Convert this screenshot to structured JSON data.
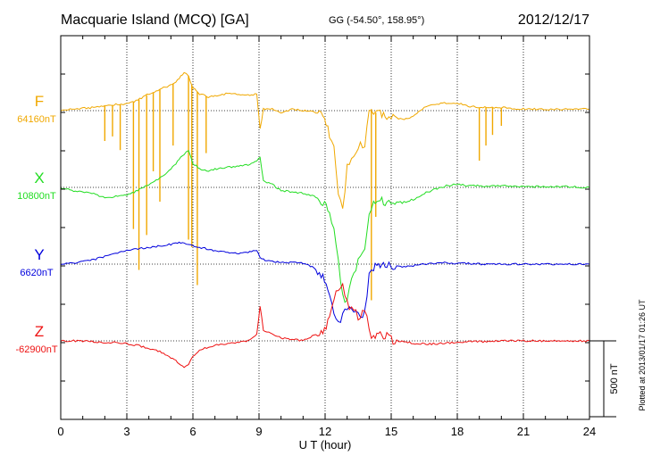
{
  "header": {
    "title": "Macquarie Island (MCQ)  [GA]",
    "coords": "GG (-54.50°, 158.95°)",
    "date": "2012/12/17"
  },
  "footer": {
    "plotted": "Plotted at 2013/01/17 01:26 UT"
  },
  "chart_data": {
    "type": "line",
    "title": "Macquarie Island (MCQ)  [GA]",
    "xlabel": "U T (hour)",
    "ylabel": "",
    "xlim": [
      0,
      24
    ],
    "xticks": [
      0,
      3,
      6,
      9,
      12,
      15,
      18,
      21,
      24
    ],
    "scale_bar": {
      "label": "500 nT",
      "value": 500
    },
    "grid": true,
    "series": [
      {
        "name": "F",
        "baseline_label": "64160nT",
        "color": "#f0a800",
        "baseline_nT": 64160,
        "x": [
          0,
          0.5,
          1,
          1.5,
          2,
          2.5,
          3,
          3.5,
          4,
          4.5,
          5,
          5.3,
          5.6,
          5.8,
          6.0,
          6.3,
          6.7,
          7.0,
          7.5,
          8.0,
          8.5,
          8.9,
          9.05,
          9.2,
          9.6,
          10.0,
          10.5,
          11.0,
          11.5,
          11.9,
          12.2,
          12.4,
          12.6,
          12.8,
          13.0,
          13.2,
          13.4,
          13.6,
          13.8,
          14.0,
          14.2,
          14.5,
          14.8,
          15.0,
          15.5,
          16.0,
          16.5,
          17.0,
          17.5,
          18.0,
          18.5,
          19.0,
          20.0,
          21.0,
          22.0,
          23.0,
          24.0
        ],
        "y": [
          0,
          10,
          15,
          20,
          30,
          40,
          45,
          70,
          110,
          140,
          170,
          200,
          250,
          230,
          150,
          110,
          90,
          100,
          110,
          110,
          100,
          110,
          -120,
          10,
          10,
          -10,
          10,
          0,
          -10,
          -30,
          -150,
          -250,
          -560,
          -650,
          -380,
          -320,
          -280,
          -200,
          -250,
          30,
          -10,
          -20,
          -60,
          -40,
          -60,
          -40,
          20,
          40,
          50,
          50,
          30,
          20,
          20,
          10,
          10,
          10,
          10
        ],
        "spikes": [
          {
            "x": 2.0,
            "y": -200
          },
          {
            "x": 2.35,
            "y": -170
          },
          {
            "x": 2.7,
            "y": -260
          },
          {
            "x": 3.3,
            "y": -780
          },
          {
            "x": 3.55,
            "y": -1050
          },
          {
            "x": 3.9,
            "y": -820
          },
          {
            "x": 4.2,
            "y": -400
          },
          {
            "x": 4.5,
            "y": -600
          },
          {
            "x": 5.1,
            "y": -230
          },
          {
            "x": 5.8,
            "y": -850
          },
          {
            "x": 5.95,
            "y": -900
          },
          {
            "x": 6.2,
            "y": -1150
          },
          {
            "x": 6.6,
            "y": -280
          },
          {
            "x": 14.1,
            "y": -1250
          },
          {
            "x": 14.3,
            "y": -700
          },
          {
            "x": 19.0,
            "y": -330
          },
          {
            "x": 19.3,
            "y": -230
          },
          {
            "x": 19.6,
            "y": -160
          },
          {
            "x": 20.0,
            "y": -100
          }
        ]
      },
      {
        "name": "X",
        "baseline_label": "10800nT",
        "color": "#22dd22",
        "baseline_nT": 10800,
        "x": [
          0,
          0.5,
          1,
          1.5,
          2,
          2.5,
          3,
          3.5,
          4,
          4.5,
          5,
          5.3,
          5.6,
          5.8,
          6.0,
          6.3,
          6.7,
          7.0,
          7.5,
          8.0,
          8.5,
          8.9,
          9.05,
          9.2,
          9.6,
          10.0,
          10.5,
          11.0,
          11.5,
          11.9,
          12.2,
          12.4,
          12.6,
          12.8,
          13.0,
          13.2,
          13.4,
          13.6,
          13.8,
          14.0,
          14.2,
          14.5,
          14.8,
          15.0,
          15.5,
          16.0,
          16.5,
          17.0,
          17.5,
          18.0,
          18.5,
          19.0,
          20.0,
          21.0,
          22.0,
          23.0,
          24.0
        ],
        "y": [
          0,
          -20,
          -30,
          -40,
          -70,
          -60,
          -50,
          -20,
          20,
          60,
          120,
          170,
          220,
          240,
          160,
          120,
          110,
          120,
          130,
          140,
          150,
          170,
          200,
          40,
          20,
          -20,
          -30,
          -40,
          -60,
          -90,
          -180,
          -300,
          -500,
          -700,
          -760,
          -600,
          -520,
          -440,
          -380,
          -200,
          -100,
          -80,
          -110,
          -80,
          -100,
          -80,
          -40,
          -10,
          10,
          20,
          10,
          10,
          10,
          5,
          5,
          5,
          0
        ]
      },
      {
        "name": "Y",
        "baseline_label": "6620nT",
        "color": "#0000dd",
        "baseline_nT": 6620,
        "x": [
          0,
          0.5,
          1,
          1.5,
          2,
          2.5,
          3,
          3.5,
          4,
          4.5,
          5,
          5.3,
          5.6,
          5.8,
          6.0,
          6.3,
          6.7,
          7.0,
          7.5,
          8.0,
          8.5,
          8.9,
          9.05,
          9.2,
          9.6,
          10.0,
          10.5,
          11.0,
          11.5,
          11.9,
          12.2,
          12.4,
          12.6,
          12.8,
          13.0,
          13.2,
          13.4,
          13.6,
          13.8,
          14.0,
          14.2,
          14.5,
          14.8,
          15.0,
          15.5,
          16.0,
          16.5,
          17.0,
          17.5,
          18.0,
          18.5,
          19.0,
          20.0,
          21.0,
          22.0,
          23.0,
          24.0
        ],
        "y": [
          0,
          5,
          15,
          30,
          50,
          70,
          90,
          100,
          110,
          120,
          130,
          140,
          140,
          130,
          120,
          110,
          100,
          90,
          80,
          70,
          80,
          90,
          40,
          30,
          20,
          10,
          10,
          5,
          -20,
          -80,
          -200,
          -340,
          -400,
          -330,
          -300,
          -290,
          -320,
          -350,
          -300,
          -80,
          -20,
          -10,
          -20,
          -10,
          -15,
          -10,
          0,
          5,
          10,
          5,
          5,
          0,
          0,
          0,
          0,
          0,
          0
        ]
      },
      {
        "name": "Z",
        "baseline_label": "-62900nT",
        "color": "#ee1111",
        "baseline_nT": -62900,
        "x": [
          0,
          0.5,
          1,
          1.5,
          2,
          2.5,
          3,
          3.5,
          4,
          4.5,
          5,
          5.3,
          5.6,
          5.8,
          6.0,
          6.3,
          6.7,
          7.0,
          7.5,
          8.0,
          8.5,
          8.9,
          9.05,
          9.2,
          9.6,
          10.0,
          10.5,
          11.0,
          11.5,
          11.9,
          12.2,
          12.4,
          12.6,
          12.8,
          13.0,
          13.2,
          13.4,
          13.6,
          13.8,
          14.0,
          14.2,
          14.5,
          14.8,
          15.0,
          15.5,
          16.0,
          16.5,
          17.0,
          17.5,
          18.0,
          18.5,
          19.0,
          20.0,
          21.0,
          22.0,
          23.0,
          24.0
        ],
        "y": [
          0,
          0,
          0,
          -5,
          -10,
          -10,
          -20,
          -30,
          -50,
          -70,
          -110,
          -140,
          -170,
          -160,
          -100,
          -60,
          -40,
          -30,
          -20,
          -10,
          0,
          40,
          230,
          70,
          50,
          20,
          10,
          0,
          40,
          70,
          130,
          280,
          360,
          370,
          240,
          220,
          180,
          150,
          220,
          70,
          20,
          40,
          30,
          10,
          -5,
          -15,
          -20,
          -20,
          -15,
          -10,
          -5,
          -5,
          0,
          0,
          0,
          0,
          0
        ]
      }
    ]
  }
}
